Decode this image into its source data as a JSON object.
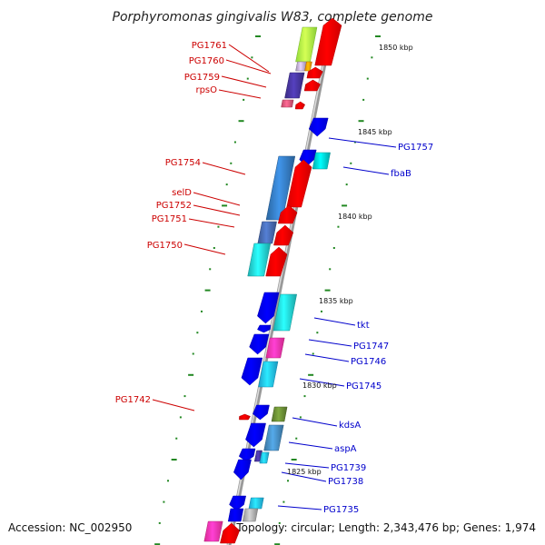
{
  "title": "Porphyromonas gingivalis W83, complete genome",
  "accession": "Accession: NC_002950",
  "topology": "Topology: circular; Length: 2,343,476 bp; Genes: 1,974",
  "colors": {
    "backbone": "#888888",
    "ticks": "#228822",
    "left_label": "#cc0000",
    "right_label": "#0000cc"
  },
  "kbp_labels": [
    {
      "text": "1850 kbp"
    },
    {
      "text": "1845 kbp"
    },
    {
      "text": "1840 kbp"
    },
    {
      "text": "1835 kbp"
    },
    {
      "text": "1830 kbp"
    },
    {
      "text": "1825 kbp"
    }
  ],
  "left_genes": [
    {
      "label": "PG1761"
    },
    {
      "label": "PG1760"
    },
    {
      "label": "PG1759"
    },
    {
      "label": "rpsO"
    },
    {
      "label": "PG1754"
    },
    {
      "label": "selD"
    },
    {
      "label": "PG1752"
    },
    {
      "label": "PG1751"
    },
    {
      "label": "PG1750"
    },
    {
      "label": "PG1742"
    }
  ],
  "right_genes": [
    {
      "label": "PG1757"
    },
    {
      "label": "fbaB"
    },
    {
      "label": "tkt"
    },
    {
      "label": "PG1747"
    },
    {
      "label": "PG1746"
    },
    {
      "label": "PG1745"
    },
    {
      "label": "kdsA"
    },
    {
      "label": "aspA"
    },
    {
      "label": "PG1739"
    },
    {
      "label": "PG1738"
    },
    {
      "label": "PG1735"
    }
  ]
}
